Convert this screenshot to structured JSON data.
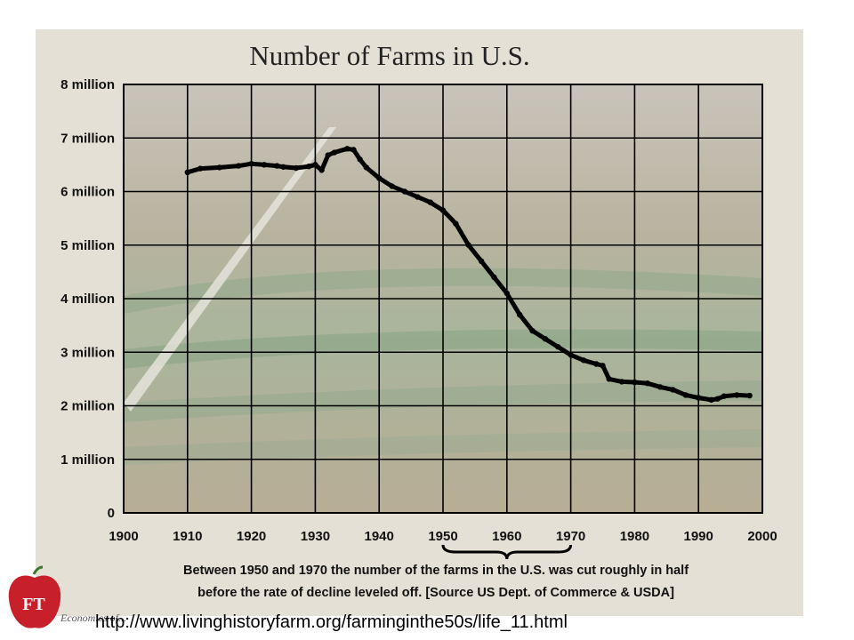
{
  "chart_data": {
    "type": "line",
    "title": "Number of Farms in U.S.",
    "xlabel": "",
    "ylabel": "",
    "xlim": [
      1900,
      2000
    ],
    "ylim": [
      0,
      8000000
    ],
    "x_ticks": [
      1900,
      1910,
      1920,
      1930,
      1940,
      1950,
      1960,
      1970,
      1980,
      1990,
      2000
    ],
    "y_ticks": [
      0,
      1000000,
      2000000,
      3000000,
      4000000,
      5000000,
      6000000,
      7000000,
      8000000
    ],
    "x_tick_labels": [
      "1900",
      "1910",
      "1920",
      "1930",
      "1940",
      "1950",
      "1960",
      "1970",
      "1980",
      "1990",
      "2000"
    ],
    "y_tick_labels": [
      "0",
      "1 million",
      "2 million",
      "3 million",
      "4 million",
      "5 million",
      "6 million",
      "7 million",
      "8 million"
    ],
    "grid": true,
    "series": [
      {
        "color": "#000000",
        "x": [
          1910,
          1912,
          1915,
          1918,
          1920,
          1922,
          1924,
          1925,
          1927,
          1929,
          1930,
          1931,
          1932,
          1933,
          1935,
          1936,
          1937,
          1938,
          1940,
          1942,
          1944,
          1946,
          1948,
          1950,
          1952,
          1954,
          1956,
          1958,
          1960,
          1962,
          1964,
          1966,
          1968,
          1970,
          1972,
          1974,
          1975,
          1976,
          1978,
          1980,
          1982,
          1984,
          1986,
          1988,
          1990,
          1992,
          1993,
          1994,
          1996,
          1998
        ],
        "y": [
          6360000,
          6430000,
          6450000,
          6480000,
          6520000,
          6500000,
          6480000,
          6460000,
          6440000,
          6470000,
          6500000,
          6400000,
          6680000,
          6730000,
          6800000,
          6780000,
          6600000,
          6450000,
          6250000,
          6100000,
          6000000,
          5900000,
          5800000,
          5650000,
          5400000,
          5000000,
          4700000,
          4400000,
          4100000,
          3700000,
          3400000,
          3250000,
          3100000,
          2950000,
          2850000,
          2780000,
          2750000,
          2500000,
          2450000,
          2440000,
          2420000,
          2350000,
          2300000,
          2200000,
          2150000,
          2110000,
          2130000,
          2180000,
          2200000,
          2190000
        ]
      }
    ],
    "annotations": {
      "range_brace": [
        1950,
        1970
      ],
      "caption_line1": "Between 1950 and 1970 the number of the farms in the U.S. was cut roughly in half",
      "caption_line2": "before the rate of decline leveled off. [Source US Dept. of Commerce & USDA]"
    }
  },
  "footer": {
    "url": "http://www.livinghistoryfarm.org/farminginthe50s/life_11.html",
    "logo_text": "FT",
    "logo_subtext": "Economics of..."
  }
}
